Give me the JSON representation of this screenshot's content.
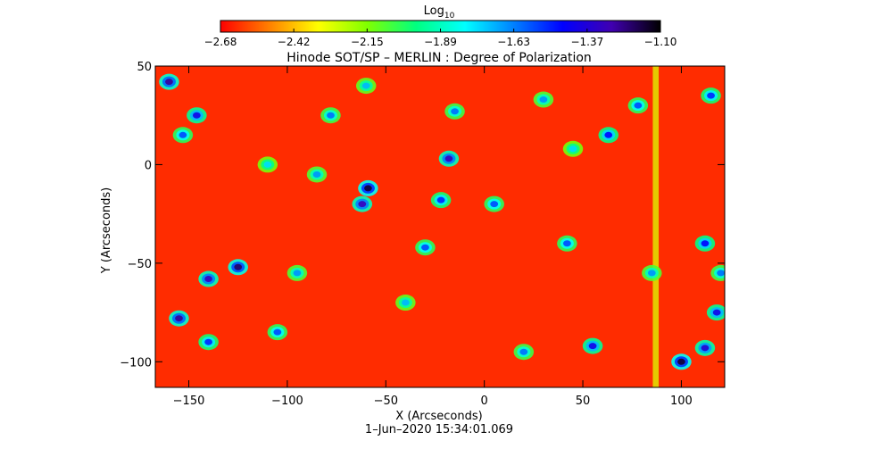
{
  "chart_data": {
    "type": "heatmap",
    "title": "Hinode SOT/SP – MERLIN : Degree of Polarization",
    "xlabel": "X (Arcseconds)",
    "ylabel": "Y (Arcseconds)",
    "timestamp": "1–Jun–2020 15:34:01.069",
    "colorbar": {
      "label_base": "Log",
      "label_sub": "10",
      "range": [
        -2.68,
        -1.1
      ],
      "ticks": [
        "−2.68",
        "−2.42",
        "−2.15",
        "−1.89",
        "−1.63",
        "−1.37",
        "−1.10"
      ],
      "colors": [
        "#ff0000",
        "#ff8000",
        "#ffff00",
        "#80ff00",
        "#00ff80",
        "#00ffff",
        "#0080ff",
        "#0000ff",
        "#4000b0",
        "#000000"
      ]
    },
    "xlim": [
      -167,
      122
    ],
    "ylim": [
      -113,
      50
    ],
    "x_ticks": [
      {
        "value": -150,
        "label": "−150"
      },
      {
        "value": -100,
        "label": "−100"
      },
      {
        "value": -50,
        "label": "−50"
      },
      {
        "value": 0,
        "label": "0"
      },
      {
        "value": 50,
        "label": "50"
      },
      {
        "value": 100,
        "label": "100"
      }
    ],
    "y_ticks": [
      {
        "value": 50,
        "label": "50"
      },
      {
        "value": 0,
        "label": "0"
      },
      {
        "value": -50,
        "label": "−50"
      },
      {
        "value": -100,
        "label": "−100"
      }
    ],
    "background_level": -2.62,
    "features": [
      {
        "x": -59,
        "y": -12,
        "level": -1.15
      },
      {
        "x": -62,
        "y": -20,
        "level": -1.3
      },
      {
        "x": -125,
        "y": -52,
        "level": -1.2
      },
      {
        "x": -140,
        "y": -58,
        "level": -1.3
      },
      {
        "x": -155,
        "y": -78,
        "level": -1.25
      },
      {
        "x": 100,
        "y": -100,
        "level": -1.15
      },
      {
        "x": 112,
        "y": -93,
        "level": -1.35
      },
      {
        "x": -160,
        "y": 42,
        "level": -1.25
      },
      {
        "x": -146,
        "y": 25,
        "level": -1.4
      },
      {
        "x": -18,
        "y": 3,
        "level": -1.3
      },
      {
        "x": -22,
        "y": -18,
        "level": -1.5
      },
      {
        "x": 63,
        "y": 15,
        "level": -1.45
      },
      {
        "x": 78,
        "y": 30,
        "level": -1.55
      },
      {
        "x": 115,
        "y": 35,
        "level": -1.5
      },
      {
        "x": 112,
        "y": -40,
        "level": -1.45
      },
      {
        "x": 120,
        "y": -55,
        "level": -1.6
      },
      {
        "x": 118,
        "y": -75,
        "level": -1.4
      },
      {
        "x": -78,
        "y": 25,
        "level": -1.6
      },
      {
        "x": 5,
        "y": -20,
        "level": -1.55
      },
      {
        "x": 42,
        "y": -40,
        "level": -1.55
      },
      {
        "x": 55,
        "y": -92,
        "level": -1.4
      },
      {
        "x": -105,
        "y": -85,
        "level": -1.55
      },
      {
        "x": -153,
        "y": 15,
        "level": -1.55
      },
      {
        "x": -140,
        "y": -90,
        "level": -1.5
      },
      {
        "x": -95,
        "y": -55,
        "level": -1.65
      },
      {
        "x": -30,
        "y": -42,
        "level": -1.55
      },
      {
        "x": -15,
        "y": 27,
        "level": -1.6
      },
      {
        "x": 30,
        "y": 33,
        "level": -1.65
      },
      {
        "x": 20,
        "y": -95,
        "level": -1.6
      },
      {
        "x": -85,
        "y": -5,
        "level": -1.65
      },
      {
        "x": 85,
        "y": -55,
        "level": -1.65
      },
      {
        "x": -60,
        "y": 40,
        "level": -1.7
      },
      {
        "x": -110,
        "y": 0,
        "level": -1.75
      },
      {
        "x": -40,
        "y": -70,
        "level": -1.7
      },
      {
        "x": 45,
        "y": 8,
        "level": -1.75
      }
    ],
    "vertical_band": {
      "x": 87,
      "width": 3,
      "level": -2.28
    }
  }
}
